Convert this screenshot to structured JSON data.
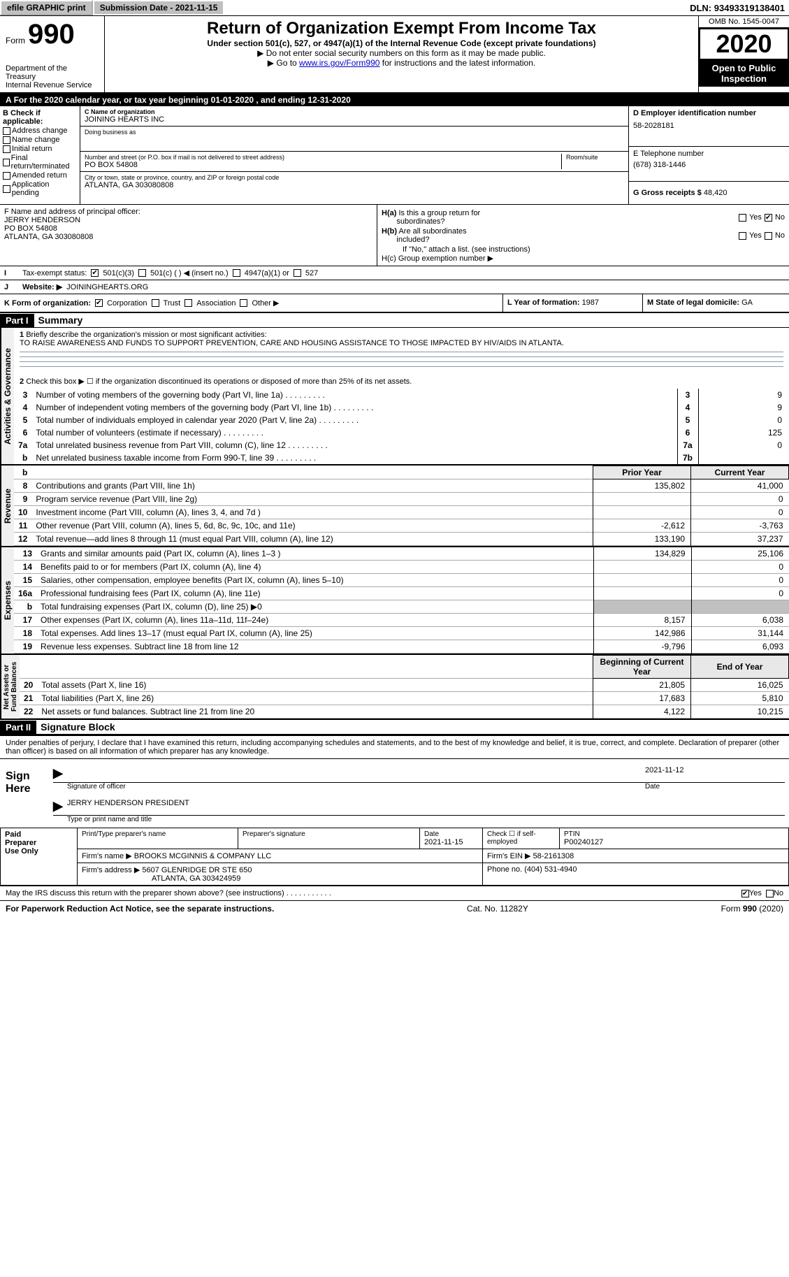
{
  "topbar": {
    "efile": "efile GRAPHIC print",
    "subdate_label": "Submission Date - ",
    "subdate": "2021-11-15",
    "dln_label": "DLN: ",
    "dln": "93493319138401"
  },
  "header": {
    "form_word": "Form",
    "form_num": "990",
    "dept": "Department of the Treasury\nInternal Revenue Service",
    "title": "Return of Organization Exempt From Income Tax",
    "sub1": "Under section 501(c), 527, or 4947(a)(1) of the Internal Revenue Code (except private foundations)",
    "sub2": "▶ Do not enter social security numbers on this form as it may be made public.",
    "sub3_pre": "▶ Go to ",
    "sub3_link": "www.irs.gov/Form990",
    "sub3_post": " for instructions and the latest information.",
    "omb": "OMB No. 1545-0047",
    "year": "2020",
    "public": "Open to Public Inspection"
  },
  "period": {
    "text": "For the 2020 calendar year, or tax year beginning 01-01-2020   , and ending 12-31-2020"
  },
  "sectionB": {
    "label": "B Check if applicable:",
    "opts": [
      "Address change",
      "Name change",
      "Initial return",
      "Final return/terminated",
      "Amended return",
      "Application pending"
    ]
  },
  "sectionC": {
    "name_lbl": "C Name of organization",
    "name": "JOINING HEARTS INC",
    "dba_lbl": "Doing business as",
    "dba": "",
    "addr_lbl": "Number and street (or P.O. box if mail is not delivered to street address)",
    "room_lbl": "Room/suite",
    "addr": "PO BOX 54808",
    "city_lbl": "City or town, state or province, country, and ZIP or foreign postal code",
    "city": "ATLANTA, GA  303080808"
  },
  "sectionD": {
    "lbl": "D Employer identification number",
    "val": "58-2028181"
  },
  "sectionE": {
    "lbl": "E Telephone number",
    "val": "(678) 318-1446"
  },
  "sectionG": {
    "lbl": "G Gross receipts $ ",
    "val": "48,420"
  },
  "sectionF": {
    "lbl": "F Name and address of principal officer:",
    "name": "JERRY HENDERSON",
    "addr1": "PO BOX 54808",
    "addr2": "ATLANTA, GA  303080808"
  },
  "sectionH": {
    "a_lbl": "H(a)  Is this a group return for subordinates?",
    "b_lbl": "H(b)  Are all subordinates included?",
    "b_note": "If \"No,\" attach a list. (see instructions)",
    "c_lbl": "H(c)  Group exemption number ▶"
  },
  "taxrow": {
    "lbl": "Tax-exempt status:",
    "o1": "501(c)(3)",
    "o2": "501(c) (   ) ◀ (insert no.)",
    "o3": "4947(a)(1) or",
    "o4": "527"
  },
  "website": {
    "lbl": "Website: ▶",
    "val": "JOININGHEARTS.ORG"
  },
  "krow": {
    "lbl": "K Form of organization:",
    "opts": [
      "Corporation",
      "Trust",
      "Association",
      "Other ▶"
    ],
    "l_lbl": "L Year of formation: ",
    "l_val": "1987",
    "m_lbl": "M State of legal domicile: ",
    "m_val": "GA"
  },
  "part1": {
    "hdr": "Part I",
    "title": "Summary",
    "gov_label": "Activities & Governance",
    "rev_label": "Revenue",
    "exp_label": "Expenses",
    "net_label": "Net Assets or Fund Balances",
    "q1": "Briefly describe the organization's mission or most significant activities:",
    "mission": "TO RAISE AWARENESS AND FUNDS TO SUPPORT PREVENTION, CARE AND HOUSING ASSISTANCE TO THOSE IMPACTED BY HIV/AIDS IN ATLANTA.",
    "q2": "Check this box ▶ ☐  if the organization discontinued its operations or disposed of more than 25% of its net assets.",
    "lines_gov": [
      {
        "n": "3",
        "d": "Number of voting members of the governing body (Part VI, line 1a)",
        "r": "3",
        "v": "9"
      },
      {
        "n": "4",
        "d": "Number of independent voting members of the governing body (Part VI, line 1b)",
        "r": "4",
        "v": "9"
      },
      {
        "n": "5",
        "d": "Total number of individuals employed in calendar year 2020 (Part V, line 2a)",
        "r": "5",
        "v": "0"
      },
      {
        "n": "6",
        "d": "Total number of volunteers (estimate if necessary)",
        "r": "6",
        "v": "125"
      },
      {
        "n": "7a",
        "d": "Total unrelated business revenue from Part VIII, column (C), line 12",
        "r": "7a",
        "v": "0"
      },
      {
        "n": "b",
        "d": "Net unrelated business taxable income from Form 990-T, line 39",
        "r": "7b",
        "v": ""
      }
    ],
    "py_hdr": "Prior Year",
    "cy_hdr": "Current Year",
    "rev_lines": [
      {
        "n": "8",
        "d": "Contributions and grants (Part VIII, line 1h)",
        "py": "135,802",
        "cy": "41,000"
      },
      {
        "n": "9",
        "d": "Program service revenue (Part VIII, line 2g)",
        "py": "",
        "cy": "0"
      },
      {
        "n": "10",
        "d": "Investment income (Part VIII, column (A), lines 3, 4, and 7d )",
        "py": "",
        "cy": "0"
      },
      {
        "n": "11",
        "d": "Other revenue (Part VIII, column (A), lines 5, 6d, 8c, 9c, 10c, and 11e)",
        "py": "-2,612",
        "cy": "-3,763"
      },
      {
        "n": "12",
        "d": "Total revenue—add lines 8 through 11 (must equal Part VIII, column (A), line 12)",
        "py": "133,190",
        "cy": "37,237"
      }
    ],
    "exp_lines": [
      {
        "n": "13",
        "d": "Grants and similar amounts paid (Part IX, column (A), lines 1–3 )",
        "py": "134,829",
        "cy": "25,106"
      },
      {
        "n": "14",
        "d": "Benefits paid to or for members (Part IX, column (A), line 4)",
        "py": "",
        "cy": "0"
      },
      {
        "n": "15",
        "d": "Salaries, other compensation, employee benefits (Part IX, column (A), lines 5–10)",
        "py": "",
        "cy": "0"
      },
      {
        "n": "16a",
        "d": "Professional fundraising fees (Part IX, column (A), line 11e)",
        "py": "",
        "cy": "0"
      },
      {
        "n": "b",
        "d": "Total fundraising expenses (Part IX, column (D), line 25) ▶0",
        "py": "GRAY",
        "cy": "GRAY"
      },
      {
        "n": "17",
        "d": "Other expenses (Part IX, column (A), lines 11a–11d, 11f–24e)",
        "py": "8,157",
        "cy": "6,038"
      },
      {
        "n": "18",
        "d": "Total expenses. Add lines 13–17 (must equal Part IX, column (A), line 25)",
        "py": "142,986",
        "cy": "31,144"
      },
      {
        "n": "19",
        "d": "Revenue less expenses. Subtract line 18 from line 12",
        "py": "-9,796",
        "cy": "6,093"
      }
    ],
    "boy_hdr": "Beginning of Current Year",
    "eoy_hdr": "End of Year",
    "net_lines": [
      {
        "n": "20",
        "d": "Total assets (Part X, line 16)",
        "py": "21,805",
        "cy": "16,025"
      },
      {
        "n": "21",
        "d": "Total liabilities (Part X, line 26)",
        "py": "17,683",
        "cy": "5,810"
      },
      {
        "n": "22",
        "d": "Net assets or fund balances. Subtract line 21 from line 20",
        "py": "4,122",
        "cy": "10,215"
      }
    ]
  },
  "part2": {
    "hdr": "Part II",
    "title": "Signature Block",
    "declare": "Under penalties of perjury, I declare that I have examined this return, including accompanying schedules and statements, and to the best of my knowledge and belief, it is true, correct, and complete. Declaration of preparer (other than officer) is based on all information of which preparer has any knowledge.",
    "sign_here": "Sign Here",
    "sig_officer_cap": "Signature of officer",
    "sig_date": "2021-11-12",
    "sig_date_cap": "Date",
    "officer_name": "JERRY HENDERSON  PRESIDENT",
    "officer_cap": "Type or print name and title",
    "paid_lbl": "Paid Preparer Use Only",
    "prep_name_lbl": "Print/Type preparer's name",
    "prep_sig_lbl": "Preparer's signature",
    "prep_date_lbl": "Date",
    "prep_date": "2021-11-15",
    "prep_check_lbl": "Check ☐ if self-employed",
    "ptin_lbl": "PTIN",
    "ptin": "P00240127",
    "firm_name_lbl": "Firm's name    ▶ ",
    "firm_name": "BROOKS MCGINNIS & COMPANY LLC",
    "firm_ein_lbl": "Firm's EIN ▶ ",
    "firm_ein": "58-2161308",
    "firm_addr_lbl": "Firm's address ▶ ",
    "firm_addr1": "5607 GLENRIDGE DR STE 650",
    "firm_addr2": "ATLANTA, GA  303424959",
    "phone_lbl": "Phone no. ",
    "phone": "(404) 531-4940",
    "discuss": "May the IRS discuss this return with the preparer shown above? (see instructions)"
  },
  "footer": {
    "left": "For Paperwork Reduction Act Notice, see the separate instructions.",
    "mid": "Cat. No. 11282Y",
    "right": "Form 990 (2020)"
  }
}
